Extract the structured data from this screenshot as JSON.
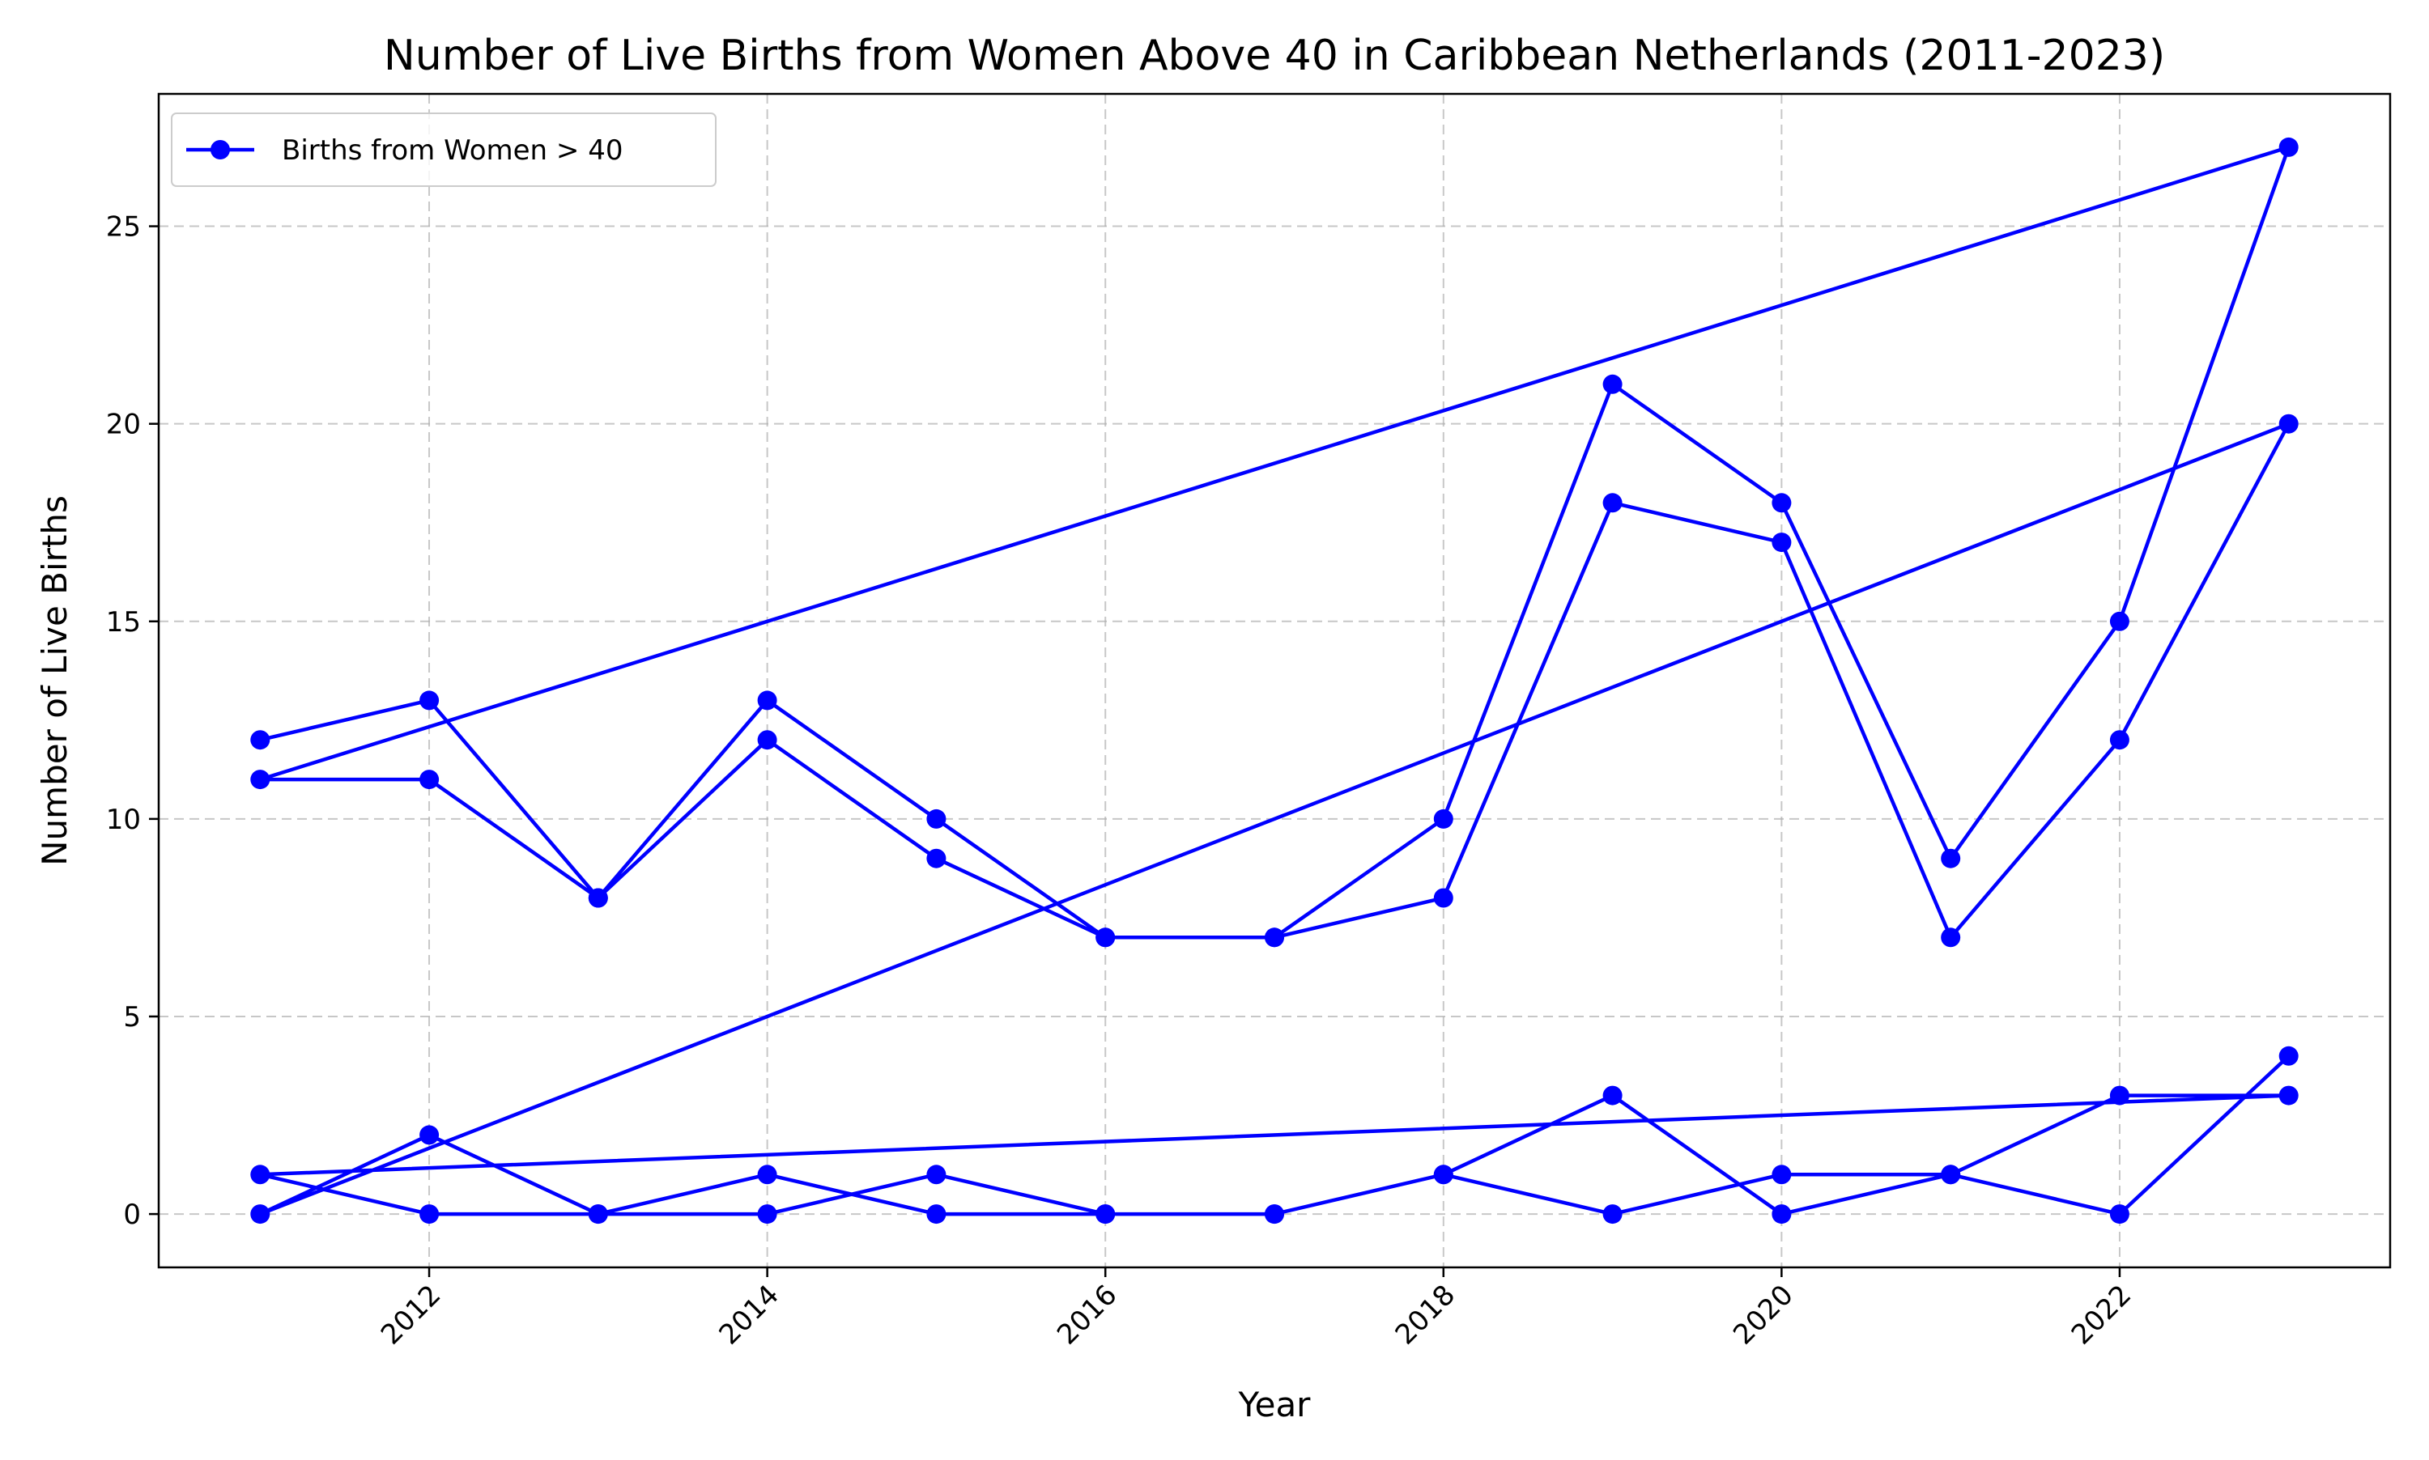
{
  "chart_data": {
    "type": "line",
    "title": "Number of Live Births from Women Above 40 in Caribbean Netherlands (2011-2023)",
    "xlabel": "Year",
    "ylabel": "Number of Live Births",
    "xlim": [
      2010.4,
      2023.6
    ],
    "ylim": [
      -1.35,
      28.35
    ],
    "x_ticks": [
      2012,
      2014,
      2016,
      2018,
      2020,
      2022
    ],
    "y_ticks": [
      0,
      5,
      10,
      15,
      20,
      25
    ],
    "grid": true,
    "legend_position": "upper-left",
    "color": "#0000ff",
    "series": [
      {
        "name": "Births from Women > 40",
        "x": [
          2011,
          2012,
          2013,
          2014,
          2015,
          2016,
          2017,
          2018,
          2019,
          2020,
          2021,
          2022,
          2023,
          2011,
          2012,
          2013,
          2014,
          2015,
          2016,
          2017,
          2018,
          2019,
          2020,
          2021,
          2022,
          2023,
          2011,
          2012,
          2013,
          2014,
          2015,
          2016,
          2017,
          2018,
          2019,
          2020,
          2021,
          2022,
          2023,
          2011,
          2012,
          2013,
          2014,
          2015,
          2016,
          2017,
          2018,
          2019,
          2020,
          2021,
          2022,
          2023
        ],
        "y": [
          12,
          13,
          8,
          13,
          10,
          7,
          7,
          10,
          21,
          18,
          9,
          15,
          27,
          11,
          11,
          8,
          12,
          9,
          7,
          7,
          8,
          18,
          17,
          7,
          12,
          20,
          0,
          2,
          0,
          1,
          0,
          0,
          0,
          1,
          3,
          0,
          1,
          3,
          3,
          1,
          0,
          0,
          0,
          1,
          0,
          0,
          1,
          0,
          1,
          1,
          0,
          4
        ]
      }
    ]
  }
}
